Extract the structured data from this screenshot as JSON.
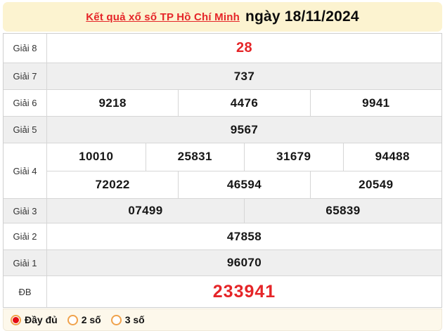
{
  "header": {
    "title_link": "Kết quả xổ số TP Hồ Chí Minh",
    "title_date": "ngày 18/11/2024"
  },
  "table": {
    "rows": [
      {
        "key": "g8",
        "label": "Giải 8",
        "shade": false,
        "accent": true,
        "cells": [
          [
            "28"
          ]
        ]
      },
      {
        "key": "g7",
        "label": "Giải 7",
        "shade": true,
        "accent": false,
        "cells": [
          [
            "737"
          ]
        ]
      },
      {
        "key": "g6",
        "label": "Giải 6",
        "shade": false,
        "accent": false,
        "cells": [
          [
            "9218",
            "4476",
            "9941"
          ]
        ]
      },
      {
        "key": "g5",
        "label": "Giải 5",
        "shade": true,
        "accent": false,
        "cells": [
          [
            "9567"
          ]
        ]
      },
      {
        "key": "g4",
        "label": "Giải 4",
        "shade": false,
        "accent": false,
        "cells": [
          [
            "10010",
            "25831",
            "31679",
            "94488"
          ],
          [
            "72022",
            "46594",
            "20549"
          ]
        ]
      },
      {
        "key": "g3",
        "label": "Giải 3",
        "shade": true,
        "accent": false,
        "cells": [
          [
            "07499",
            "65839"
          ]
        ]
      },
      {
        "key": "g2",
        "label": "Giải 2",
        "shade": false,
        "accent": false,
        "cells": [
          [
            "47858"
          ]
        ]
      },
      {
        "key": "g1",
        "label": "Giải 1",
        "shade": true,
        "accent": false,
        "cells": [
          [
            "96070"
          ]
        ]
      },
      {
        "key": "db",
        "label": "ĐB",
        "shade": false,
        "accent": true,
        "cells": [
          [
            "233941"
          ]
        ]
      }
    ]
  },
  "footer": {
    "options": [
      {
        "label": "Đầy đủ",
        "selected": true
      },
      {
        "label": "2 số",
        "selected": false
      },
      {
        "label": "3 số",
        "selected": false
      }
    ]
  },
  "colors": {
    "header_background": "#fcf3d0",
    "footer_background": "#fdf8eb",
    "shaded_row": "#efefef",
    "accent_red": "#e52528",
    "radio_ring_orange": "#f0a24b"
  }
}
